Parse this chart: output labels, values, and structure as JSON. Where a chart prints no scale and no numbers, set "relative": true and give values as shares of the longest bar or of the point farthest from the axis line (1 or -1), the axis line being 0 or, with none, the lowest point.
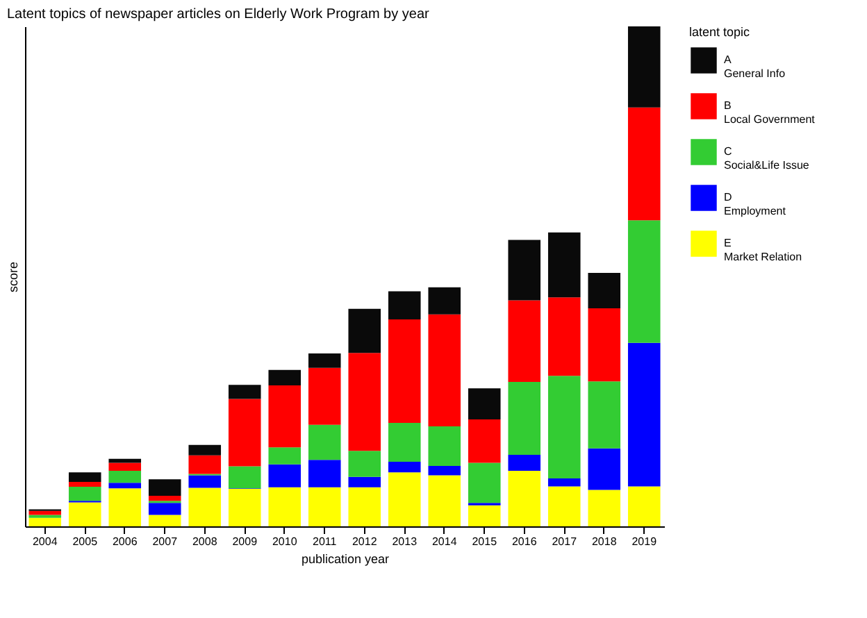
{
  "chart_data": {
    "type": "bar",
    "title": "Latent topics of newspaper articles on Elderly Work Program by year",
    "xlabel": "publication year",
    "ylabel": "score",
    "legend_title": "latent topic",
    "categories": [
      "2004",
      "2005",
      "2006",
      "2007",
      "2008",
      "2009",
      "2010",
      "2011",
      "2012",
      "2013",
      "2014",
      "2015",
      "2016",
      "2017",
      "2018",
      "2019"
    ],
    "stacked": true,
    "relative": true,
    "grid": false,
    "legend": "right",
    "tick_labels": "x",
    "series": [
      {
        "name": "E\nMarket Relation",
        "color": "#ffff00",
        "values": [
          0.017,
          0.048,
          0.076,
          0.023,
          0.077,
          0.075,
          0.078,
          0.078,
          0.078,
          0.108,
          0.102,
          0.042,
          0.111,
          0.08,
          0.073,
          0.08
        ]
      },
      {
        "name": "D\nEmployment",
        "color": "#0000ff",
        "values": [
          0,
          0.003,
          0.011,
          0.024,
          0.025,
          0.001,
          0.046,
          0.055,
          0.021,
          0.021,
          0.019,
          0.005,
          0.032,
          0.016,
          0.083,
          0.287
        ]
      },
      {
        "name": "C\nSocial&Life Issue",
        "color": "#33cc33",
        "values": [
          0.006,
          0.028,
          0.024,
          0.004,
          0.003,
          0.044,
          0.034,
          0.07,
          0.052,
          0.078,
          0.079,
          0.08,
          0.146,
          0.205,
          0.134,
          0.245
        ]
      },
      {
        "name": "B\nLocal Government",
        "color": "#ff0000",
        "values": [
          0.008,
          0.01,
          0.016,
          0.01,
          0.037,
          0.135,
          0.124,
          0.114,
          0.196,
          0.207,
          0.224,
          0.087,
          0.163,
          0.157,
          0.146,
          0.226
        ]
      },
      {
        "name": "A\nGeneral Info",
        "color": "#0a0a0a",
        "values": [
          0.003,
          0.019,
          0.008,
          0.033,
          0.021,
          0.028,
          0.031,
          0.029,
          0.088,
          0.056,
          0.054,
          0.062,
          0.121,
          0.13,
          0.071,
          0.162
        ]
      }
    ]
  }
}
